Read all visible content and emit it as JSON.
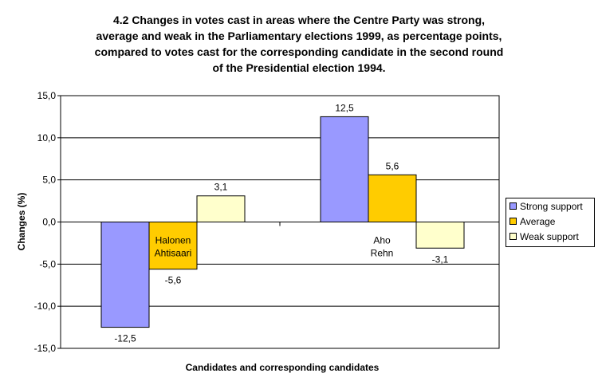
{
  "title_lines": [
    "4.2 Changes in votes cast in areas where the Centre Party was strong,",
    "average and weak in the Parliamentary elections 1999, as percentage points,",
    "compared to votes cast for the corresponding candidate in the second round",
    "of the Presidential election 1994."
  ],
  "chart_data": {
    "type": "bar",
    "title": "4.2 Changes in votes cast in areas where the Centre Party was strong, average and weak in the Parliamentary elections 1999, as percentage points, compared to votes cast for the corresponding candidate in the second round of the Presidential election 1994.",
    "xlabel": "Candidates and corresponding candidates",
    "ylabel": "Changes (%)",
    "ylim": [
      -15,
      15
    ],
    "y_ticks": [
      "15,0",
      "10,0",
      "5,0",
      "0,0",
      "-5,0",
      "-10,0",
      "-15,0"
    ],
    "y_tick_values": [
      15,
      10,
      5,
      0,
      -5,
      -10,
      -15
    ],
    "grid": true,
    "legend_position": "right",
    "categories": [
      "Halonen\nAhtisaari",
      "Aho\nRehn"
    ],
    "category_label_lines": [
      [
        "Halonen",
        "Ahtisaari"
      ],
      [
        "Aho",
        "Rehn"
      ]
    ],
    "series": [
      {
        "name": "Strong support",
        "color": "#9999ff",
        "values": [
          -12.5,
          12.5
        ],
        "labels": [
          "-12,5",
          "12,5"
        ]
      },
      {
        "name": "Average",
        "color": "#ffcc00",
        "values": [
          -5.6,
          5.6
        ],
        "labels": [
          "-5,6",
          "5,6"
        ]
      },
      {
        "name": "Weak support",
        "color": "#ffffcc",
        "values": [
          3.1,
          -3.1
        ],
        "labels": [
          "3,1",
          "-3,1"
        ]
      }
    ]
  },
  "legend": {
    "items": [
      {
        "label": "Strong support",
        "color": "#9999ff"
      },
      {
        "label": "Average",
        "color": "#ffcc00"
      },
      {
        "label": "Weak support",
        "color": "#ffffcc"
      }
    ]
  }
}
